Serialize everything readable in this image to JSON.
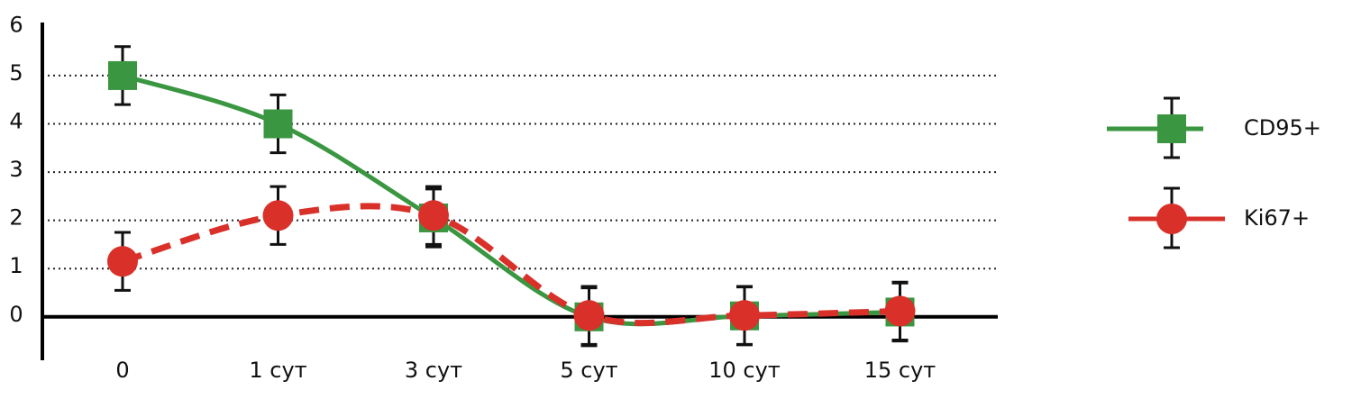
{
  "chart_data": {
    "type": "line",
    "categories": [
      "0",
      "1 сут",
      "3 сут",
      "5 сут",
      "10 сут",
      "15 сут"
    ],
    "series": [
      {
        "name": "CD95+",
        "color": "#3a9641",
        "marker": "square",
        "dashed": false,
        "values": [
          5.0,
          4.0,
          2.05,
          0.0,
          0.02,
          0.1
        ],
        "errors": [
          0.6,
          0.6,
          0.6,
          0.6,
          0.6,
          0.6
        ]
      },
      {
        "name": "Ki67+",
        "color": "#d9302a",
        "marker": "circle",
        "dashed": true,
        "values": [
          1.15,
          2.1,
          2.1,
          0.03,
          0.03,
          0.12
        ],
        "errors": [
          0.6,
          0.6,
          0.6,
          0.6,
          0.6,
          0.6
        ]
      }
    ],
    "ylim": [
      -0.9,
      6.1
    ],
    "yticks": [
      0,
      1,
      2,
      3,
      4,
      5,
      6
    ],
    "grid": true
  }
}
